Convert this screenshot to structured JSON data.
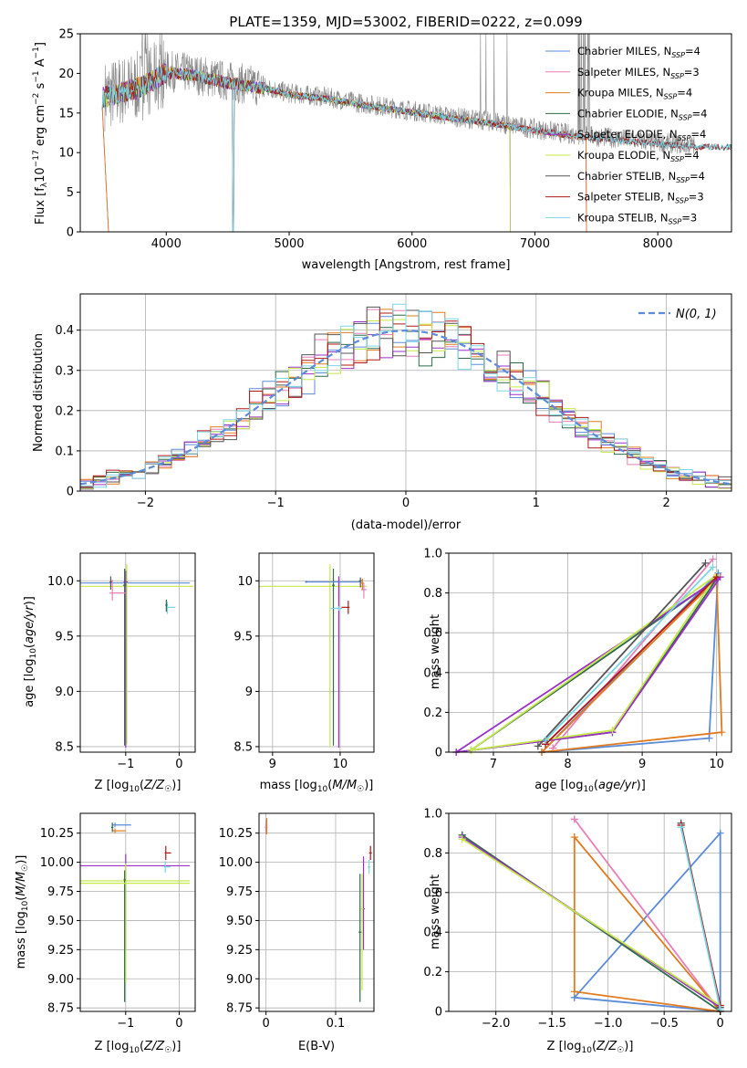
{
  "figure_title": "PLATE=1359, MJD=53002, FIBERID=0222, z=0.099",
  "colors": {
    "chabrier_miles": "#5b8bd9",
    "salpeter_miles": "#e87fb8",
    "kroupa_miles": "#e07b20",
    "chabrier_elodie": "#2f6b4a",
    "salpeter_elodie": "#9b30c8",
    "kroupa_elodie": "#c5e84a",
    "chabrier_stelib": "#555555",
    "salpeter_stelib": "#b01818",
    "kroupa_stelib": "#7ad6e6",
    "data": "#888888",
    "normal": "#5b8bd9"
  },
  "chart_data": [
    {
      "id": "spectrum",
      "type": "line",
      "xlabel": "wavelength [Angstrom, rest frame]",
      "ylabel": "Flux [f_λ 10^-17 erg cm^-2 s^-1 A^-1]",
      "xlim": [
        3300,
        8600
      ],
      "ylim": [
        0,
        25
      ],
      "xticks": [
        4000,
        5000,
        6000,
        7000,
        8000
      ],
      "yticks": [
        0,
        5,
        10,
        15,
        20,
        25
      ],
      "grid": false,
      "legend": "top-right",
      "continuum": {
        "x": [
          3500,
          3800,
          4000,
          4200,
          4500,
          4800,
          5000,
          5300,
          5600,
          6000,
          6300,
          6600,
          7000,
          7300,
          7600,
          8000,
          8300
        ],
        "y": [
          17.2,
          18.5,
          20.3,
          20.0,
          19.0,
          18.3,
          17.5,
          17.0,
          16.2,
          15.3,
          14.6,
          14.0,
          13.0,
          12.3,
          11.9,
          11.3,
          10.9
        ]
      },
      "series": [
        {
          "label": "Chabrier MILES, N_SSP=4",
          "key": "chabrier_miles",
          "end": 7420
        },
        {
          "label": "Salpeter MILES, N_SSP=3",
          "key": "salpeter_miles",
          "end": 7420
        },
        {
          "label": "Kroupa MILES, N_SSP=4",
          "key": "kroupa_miles",
          "end": 7420
        },
        {
          "label": "Chabrier ELODIE, N_SSP=4",
          "key": "chabrier_elodie",
          "end": 6800
        },
        {
          "label": "Salpeter ELODIE, N_SSP=4",
          "key": "salpeter_elodie",
          "end": 6800
        },
        {
          "label": "Kroupa ELODIE, N_SSP=4",
          "key": "kroupa_elodie",
          "end": 6800
        },
        {
          "label": "Chabrier STELIB, N_SSP=4",
          "key": "chabrier_stelib",
          "end": 8600
        },
        {
          "label": "Salpeter STELIB, N_SSP=3",
          "key": "salpeter_stelib",
          "end": 8600
        },
        {
          "label": "Kroupa STELIB, N_SSP=3",
          "key": "kroupa_stelib",
          "end": 8600
        }
      ]
    },
    {
      "id": "residuals",
      "type": "histogram",
      "xlabel": "(data-model)/error",
      "ylabel": "Normed distribution",
      "xlim": [
        -2.5,
        2.5
      ],
      "ylim": [
        0,
        0.49
      ],
      "xticks": [
        -2,
        -1,
        0,
        1,
        2
      ],
      "yticks": [
        0.0,
        0.1,
        0.2,
        0.3,
        0.4
      ],
      "grid": true,
      "legend": "top-right",
      "reference_label": "N(0, 1)",
      "bin_width": 0.1
    },
    {
      "id": "age_vs_Z",
      "type": "errorbar",
      "xlabel": "Z [log10(Z/Z☉)]",
      "ylabel": "age [log10(age/yr)]",
      "xlim": [
        -1.85,
        0.3
      ],
      "ylim": [
        8.45,
        10.25
      ],
      "xticks": [
        -1,
        0
      ],
      "yticks": [
        8.5,
        9.0,
        9.5,
        10.0
      ],
      "grid": true
    },
    {
      "id": "age_vs_mass",
      "type": "errorbar",
      "xlabel": "mass [log10(M/M☉)]",
      "ylabel": "",
      "xlim": [
        8.8,
        10.5
      ],
      "ylim": [
        8.45,
        10.25
      ],
      "xticks": [
        9,
        10
      ],
      "yticks": [
        8.5,
        9.0,
        9.5,
        10.0
      ],
      "grid": true
    },
    {
      "id": "weight_vs_age",
      "type": "line",
      "xlabel": "age [log10(age/yr)]",
      "ylabel": "mass weight",
      "xlim": [
        6.4,
        10.2
      ],
      "ylim": [
        0,
        1
      ],
      "xticks": [
        7,
        8,
        9,
        10
      ],
      "yticks": [
        0.0,
        0.2,
        0.4,
        0.6,
        0.8,
        1.0
      ],
      "grid": true,
      "series": [
        {
          "key": "chabrier_miles",
          "x": [
            7.65,
            9.9,
            10.02,
            7.65
          ],
          "y": [
            0.0,
            0.07,
            0.9,
            0.0
          ]
        },
        {
          "key": "salpeter_miles",
          "x": [
            7.8,
            9.95,
            7.8
          ],
          "y": [
            0.02,
            0.97,
            0.02
          ]
        },
        {
          "key": "kroupa_miles",
          "x": [
            7.65,
            10.0,
            10.07,
            7.65
          ],
          "y": [
            0.0,
            0.87,
            0.1,
            0.0
          ]
        },
        {
          "key": "chabrier_elodie",
          "x": [
            6.7,
            8.6,
            10.0,
            6.7
          ],
          "y": [
            0.01,
            0.1,
            0.87,
            0.01
          ]
        },
        {
          "key": "salpeter_elodie",
          "x": [
            6.5,
            8.6,
            10.05,
            6.5
          ],
          "y": [
            0.0,
            0.1,
            0.88,
            0.0
          ]
        },
        {
          "key": "kroupa_elodie",
          "x": [
            6.7,
            8.6,
            10.0,
            6.7
          ],
          "y": [
            0.01,
            0.11,
            0.89,
            0.01
          ]
        },
        {
          "key": "chabrier_stelib",
          "x": [
            7.6,
            9.85,
            7.6
          ],
          "y": [
            0.03,
            0.95,
            0.03
          ]
        },
        {
          "key": "salpeter_stelib",
          "x": [
            7.7,
            10.0,
            7.7
          ],
          "y": [
            0.04,
            0.88,
            0.04
          ]
        },
        {
          "key": "kroupa_stelib",
          "x": [
            7.7,
            9.95,
            7.7
          ],
          "y": [
            0.06,
            0.93,
            0.06
          ]
        }
      ]
    },
    {
      "id": "mass_vs_Z",
      "type": "errorbar",
      "xlabel": "Z [log10(Z/Z☉)]",
      "ylabel": "mass [log10(M/M☉)]",
      "xlim": [
        -1.85,
        0.3
      ],
      "ylim": [
        8.72,
        10.42
      ],
      "xticks": [
        -1,
        0
      ],
      "yticks": [
        8.75,
        9.0,
        9.25,
        9.5,
        9.75,
        10.0,
        10.25
      ],
      "grid": true
    },
    {
      "id": "mass_vs_ebv",
      "type": "errorbar",
      "xlabel": "E(B-V)",
      "ylabel": "",
      "xlim": [
        -0.01,
        0.155
      ],
      "ylim": [
        8.72,
        10.42
      ],
      "xticks": [
        0.0,
        0.1
      ],
      "yticks": [
        8.75,
        9.0,
        9.25,
        9.5,
        9.75,
        10.0,
        10.25
      ],
      "grid": true
    },
    {
      "id": "weight_vs_Z",
      "type": "line",
      "xlabel": "Z [log10(Z/Z☉)]",
      "ylabel": "mass weight",
      "xlim": [
        -2.42,
        0.1
      ],
      "ylim": [
        0,
        1
      ],
      "xticks": [
        -2.0,
        -1.5,
        -1.0,
        -0.5,
        0.0
      ],
      "yticks": [
        0.0,
        0.2,
        0.4,
        0.6,
        0.8,
        1.0
      ],
      "grid": true,
      "series": [
        {
          "key": "chabrier_miles",
          "x": [
            -1.3,
            0.0,
            0.0,
            -1.3
          ],
          "y": [
            0.07,
            0.0,
            0.9,
            0.07
          ]
        },
        {
          "key": "salpeter_miles",
          "x": [
            -1.3,
            0.0,
            -1.3
          ],
          "y": [
            0.97,
            0.0,
            0.97
          ]
        },
        {
          "key": "kroupa_miles",
          "x": [
            -1.3,
            -1.3,
            0.0,
            -1.3
          ],
          "y": [
            0.88,
            0.1,
            0.0,
            0.88
          ]
        },
        {
          "key": "chabrier_elodie",
          "x": [
            -2.3,
            0.0,
            -2.3
          ],
          "y": [
            0.89,
            0.0,
            0.89
          ]
        },
        {
          "key": "salpeter_elodie",
          "x": [
            -2.3,
            0.0,
            -2.3
          ],
          "y": [
            0.88,
            0.02,
            0.88
          ]
        },
        {
          "key": "kroupa_elodie",
          "x": [
            -2.3,
            0.0,
            -2.3
          ],
          "y": [
            0.87,
            0.03,
            0.87
          ]
        },
        {
          "key": "chabrier_stelib",
          "x": [
            -0.35,
            0.0,
            -0.35
          ],
          "y": [
            0.95,
            0.02,
            0.95
          ]
        },
        {
          "key": "salpeter_stelib",
          "x": [
            -0.35,
            0.0,
            -0.35
          ],
          "y": [
            0.94,
            0.03,
            0.94
          ]
        },
        {
          "key": "kroupa_stelib",
          "x": [
            -0.35,
            0.0,
            -0.35
          ],
          "y": [
            0.93,
            0.01,
            0.93
          ]
        }
      ]
    }
  ]
}
